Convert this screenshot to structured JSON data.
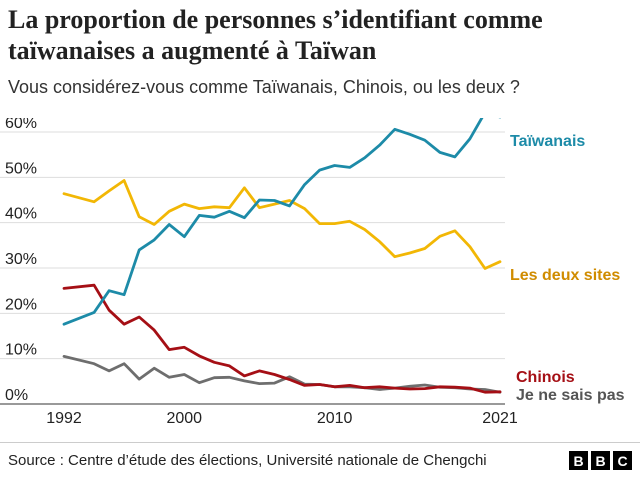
{
  "header": {
    "title": "La proportion de personnes s’identifiant comme taïwanaises a augmenté à Taïwan",
    "subtitle": "Vous considérez-vous comme Taïwanais, Chinois, ou les deux ?"
  },
  "footer": {
    "source": "Source : Centre d’étude des élections, Université nationale de Chengchi"
  },
  "logo": [
    "B",
    "B",
    "C"
  ],
  "chart_data": {
    "type": "line",
    "xlim": [
      1992,
      2021
    ],
    "ylim": [
      0,
      60
    ],
    "x_ticks": [
      1992,
      2000,
      2010,
      2021
    ],
    "x_tick_labels": [
      "1992",
      "2000",
      "2010",
      "2021"
    ],
    "y_ticks": [
      0,
      10,
      20,
      30,
      40,
      50,
      60
    ],
    "y_tick_labels": [
      "0%",
      "10%",
      "20%",
      "30%",
      "40%",
      "50%",
      "60%"
    ],
    "grid": "horizontal",
    "legend": "inline-right",
    "x": [
      1992,
      1994,
      1995,
      1996,
      1997,
      1998,
      1999,
      2000,
      2001,
      2002,
      2003,
      2004,
      2005,
      2006,
      2007,
      2008,
      2009,
      2010,
      2011,
      2012,
      2013,
      2014,
      2015,
      2016,
      2017,
      2018,
      2019,
      2020,
      2021
    ],
    "series": [
      {
        "name": "Taïwanais",
        "color": "#1d8ba8",
        "values": [
          17.6,
          20.2,
          25.0,
          24.1,
          34.0,
          36.2,
          39.6,
          36.9,
          41.6,
          41.2,
          42.5,
          41.1,
          45.0,
          44.9,
          43.7,
          48.4,
          51.6,
          52.6,
          52.2,
          54.3,
          57.1,
          60.6,
          59.5,
          58.2,
          55.5,
          54.5,
          58.5,
          64.3,
          63.3
        ]
      },
      {
        "name": "Les deux sites",
        "color": "#f2b705",
        "values": [
          46.4,
          44.6,
          47.0,
          49.3,
          41.3,
          39.6,
          42.5,
          44.1,
          43.1,
          43.5,
          43.3,
          47.7,
          43.3,
          44.1,
          44.9,
          43.1,
          39.8,
          39.8,
          40.3,
          38.5,
          35.8,
          32.5,
          33.3,
          34.3,
          37.0,
          38.2,
          34.7,
          29.9,
          31.4
        ]
      },
      {
        "name": "Chinois",
        "color": "#a50f15",
        "values": [
          25.5,
          26.2,
          20.7,
          17.6,
          19.2,
          16.3,
          12.0,
          12.5,
          10.6,
          9.2,
          8.4,
          6.2,
          7.3,
          6.5,
          5.4,
          4.1,
          4.3,
          3.8,
          4.1,
          3.6,
          3.8,
          3.5,
          3.3,
          3.4,
          3.8,
          3.7,
          3.5,
          2.6,
          2.7
        ]
      },
      {
        "name": "Je ne sais pas",
        "color": "#6e6e6e",
        "values": [
          10.5,
          8.9,
          7.3,
          8.9,
          5.5,
          7.9,
          5.9,
          6.5,
          4.7,
          5.8,
          5.9,
          5.1,
          4.5,
          4.6,
          6.0,
          4.4,
          4.3,
          3.8,
          3.8,
          3.6,
          3.2,
          3.5,
          3.9,
          4.2,
          3.7,
          3.6,
          3.3,
          3.2,
          2.6
        ]
      }
    ]
  }
}
